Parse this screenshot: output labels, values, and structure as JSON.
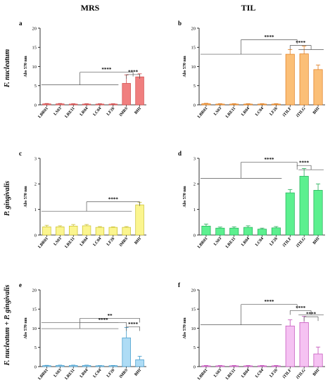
{
  "figure": {
    "column_titles": [
      "MRS",
      "TIL"
    ],
    "row_labels": [
      "F. nucleatum",
      "P. gingivalis",
      "F. nucleatum + P. gingivalis"
    ]
  },
  "chart_data": [
    {
      "panel": "a",
      "type": "bar",
      "ylabel": "Abs 570 nm",
      "categories": [
        "LBR01",
        "LS03",
        "LRE11",
        "LR04",
        "LC04",
        "LF26",
        "iMRS",
        "BHI"
      ],
      "values": [
        0.25,
        0.25,
        0.2,
        0.2,
        0.2,
        0.2,
        5.6,
        7.3
      ],
      "errors": [
        0.1,
        0.1,
        0.1,
        0.1,
        0.1,
        0.1,
        2.2,
        0.8
      ],
      "color": "#f07f7f",
      "stroke": "#d04848",
      "ylim": [
        0,
        20
      ],
      "yticks": [
        0,
        5,
        10,
        15,
        20
      ],
      "significance": [
        {
          "label": "****",
          "from": [
            6,
            7
          ],
          "to": [
            0,
            5
          ],
          "level": 8.5,
          "baseline": 5.2
        },
        {
          "label": "****",
          "from": [
            6,
            6
          ],
          "to": [
            7,
            7
          ],
          "level": 7.9,
          "baseline": 7.9
        }
      ]
    },
    {
      "panel": "b",
      "type": "bar",
      "ylabel": "Abs 570 nm",
      "categories": [
        "LBR01",
        "LS03",
        "LRE11",
        "LR04",
        "LC04",
        "LF26",
        "iTILF",
        "iTILG",
        "BHI"
      ],
      "values": [
        0.3,
        0.2,
        0.2,
        0.2,
        0.2,
        0.2,
        13.2,
        13.3,
        9.2
      ],
      "errors": [
        0.1,
        0.1,
        0.1,
        0.1,
        0.1,
        0.1,
        1.2,
        2.0,
        1.2
      ],
      "color": "#fbbf77",
      "stroke": "#e07b1c",
      "ylim": [
        0,
        20
      ],
      "yticks": [
        0,
        5,
        10,
        15,
        20
      ],
      "significance": [
        {
          "label": "****",
          "from": [
            6,
            7
          ],
          "to": [
            0,
            5
          ],
          "level": 17.0,
          "baseline": 13.2
        },
        {
          "label": "****",
          "from": [
            6,
            6
          ],
          "to": [
            7,
            8
          ],
          "level": 15.5,
          "baseline": 15.5
        }
      ]
    },
    {
      "panel": "c",
      "type": "bar",
      "ylabel": "Abs 570 nm",
      "categories": [
        "LBR01",
        "LS03",
        "LRE11",
        "LR04",
        "LC04",
        "LF26",
        "iMRS",
        "BHI"
      ],
      "values": [
        0.32,
        0.32,
        0.35,
        0.36,
        0.3,
        0.3,
        0.3,
        1.18
      ],
      "errors": [
        0.06,
        0.04,
        0.06,
        0.05,
        0.03,
        0.02,
        0.03,
        0.1
      ],
      "color": "#fbf58f",
      "stroke": "#c9bf2a",
      "ylim": [
        0,
        3
      ],
      "yticks": [
        0,
        1,
        2,
        3
      ],
      "significance": [
        {
          "label": "****",
          "from": [
            7,
            7
          ],
          "to": [
            0,
            6
          ],
          "level": 1.3,
          "baseline": 0.93
        }
      ]
    },
    {
      "panel": "d",
      "type": "bar",
      "ylabel": "Abs 570 nm",
      "categories": [
        "LBR01",
        "LS03",
        "LRE11",
        "LR04",
        "LC04",
        "LF26",
        "iTILF",
        "iTILG",
        "BHI"
      ],
      "values": [
        0.35,
        0.27,
        0.27,
        0.3,
        0.23,
        0.28,
        1.65,
        2.3,
        1.75
      ],
      "errors": [
        0.08,
        0.04,
        0.05,
        0.06,
        0.04,
        0.05,
        0.13,
        0.3,
        0.25
      ],
      "color": "#5cf08f",
      "stroke": "#1fae55",
      "ylim": [
        0,
        3
      ],
      "yticks": [
        0,
        1,
        2,
        3
      ],
      "significance": [
        {
          "label": "****",
          "from": [
            6,
            7
          ],
          "to": [
            0,
            5
          ],
          "level": 2.85,
          "baseline": 2.22
        },
        {
          "label": "****",
          "from": [
            6,
            7
          ],
          "to": [
            7,
            8
          ],
          "level": 2.72,
          "baseline": 2.72
        }
      ]
    },
    {
      "panel": "e",
      "type": "bar",
      "ylabel": "Abs 570 nm",
      "categories": [
        "LBR01",
        "LS03",
        "LRE11",
        "LR04",
        "LC04",
        "LF26",
        "iMRS",
        "BHI"
      ],
      "values": [
        0.25,
        0.3,
        0.3,
        0.3,
        0.22,
        0.25,
        7.5,
        1.8
      ],
      "errors": [
        0.08,
        0.08,
        0.08,
        0.08,
        0.05,
        0.05,
        2.7,
        0.9
      ],
      "color": "#aedcf5",
      "stroke": "#3b97c9",
      "ylim": [
        0,
        20
      ],
      "yticks": [
        0,
        5,
        10,
        15,
        20
      ],
      "significance": [
        {
          "label": "**",
          "from": [
            7,
            7
          ],
          "to": [
            0,
            5
          ],
          "level": 12.6,
          "baseline": 12.6
        },
        {
          "label": "****",
          "from": [
            6,
            6
          ],
          "to": [
            0,
            5
          ],
          "level": 11.5,
          "baseline": 9.9
        },
        {
          "label": "****",
          "from": [
            6,
            6
          ],
          "to": [
            7,
            7
          ],
          "level": 10.4,
          "baseline": 10.4
        }
      ]
    },
    {
      "panel": "f",
      "type": "bar",
      "ylabel": "Abs 570 nm",
      "categories": [
        "LBR01",
        "LS03",
        "LRE11",
        "LR04",
        "LC04",
        "LF26",
        "iTILF",
        "iTILG",
        "BHI"
      ],
      "values": [
        0.2,
        0.2,
        0.2,
        0.2,
        0.2,
        0.2,
        10.6,
        11.5,
        3.3
      ],
      "errors": [
        0.1,
        0.1,
        0.1,
        0.1,
        0.1,
        0.1,
        1.6,
        1.6,
        1.8
      ],
      "color": "#f5c2f2",
      "stroke": "#c14bb8",
      "ylim": [
        0,
        20
      ],
      "yticks": [
        0,
        5,
        10,
        15,
        20
      ],
      "significance": [
        {
          "label": "****",
          "from": [
            6,
            7
          ],
          "to": [
            0,
            5
          ],
          "level": 16.2,
          "baseline": 10.9
        },
        {
          "label": "****",
          "from": [
            6,
            6
          ],
          "to": [
            7,
            8
          ],
          "level": 14.6,
          "baseline": 14.6
        },
        {
          "label": "****",
          "from": [
            7,
            7
          ],
          "to": [
            8,
            8
          ],
          "level": 13.0,
          "baseline": 13.0
        }
      ]
    }
  ]
}
